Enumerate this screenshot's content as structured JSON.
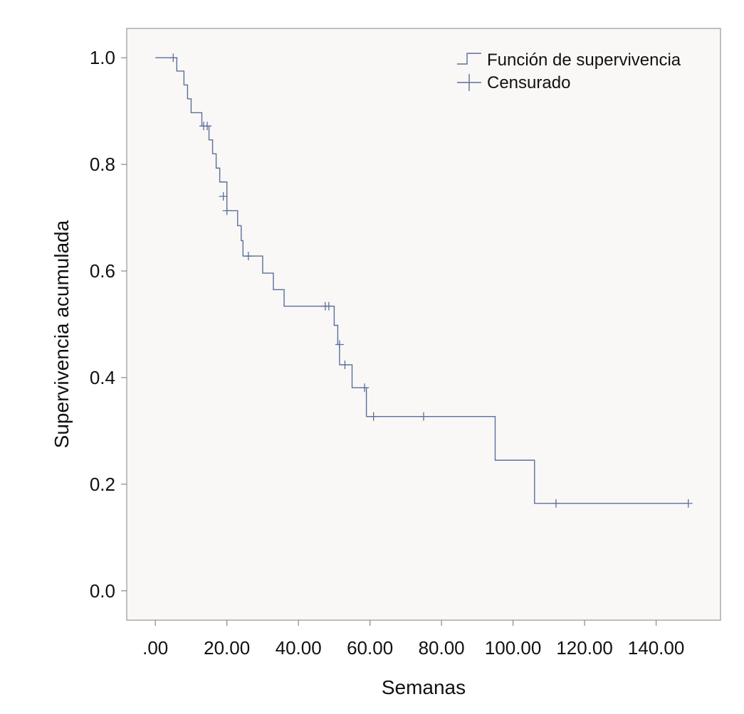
{
  "chart_data": {
    "type": "line",
    "title": "",
    "xlabel": "Semanas",
    "ylabel": "Supervivencia acumulada",
    "xlim": [
      -8,
      158
    ],
    "ylim": [
      -0.055,
      1.055
    ],
    "xticks": [
      0,
      20,
      40,
      60,
      80,
      100,
      120,
      140
    ],
    "xtick_labels": [
      ".00",
      "20.00",
      "40.00",
      "60.00",
      "80.00",
      "100.00",
      "120.00",
      "140.00"
    ],
    "yticks": [
      0.0,
      0.2,
      0.4,
      0.6,
      0.8,
      1.0
    ],
    "ytick_labels": [
      "0.0",
      "0.2",
      "0.4",
      "0.6",
      "0.8",
      "1.0"
    ],
    "grid": false,
    "legend_position": "top-right",
    "colors": {
      "line": "#5b6f9a",
      "plot_background": "#f9f8f7",
      "frame": "#aaaaaa",
      "axis": "#888888"
    },
    "series": [
      {
        "name": "Función de supervivencia",
        "step": "post",
        "x": [
          0,
          6,
          8,
          9,
          10,
          13,
          15,
          16,
          17,
          18,
          20,
          23,
          24,
          24.5,
          30,
          33,
          36,
          50,
          51,
          51.5,
          55,
          59,
          95,
          106,
          149
        ],
        "y": [
          1.0,
          0.975,
          0.949,
          0.923,
          0.897,
          0.872,
          0.846,
          0.82,
          0.793,
          0.767,
          0.713,
          0.685,
          0.657,
          0.628,
          0.596,
          0.565,
          0.534,
          0.498,
          0.462,
          0.424,
          0.381,
          0.327,
          0.245,
          0.164,
          0.164
        ]
      },
      {
        "name": "Censurado",
        "type": "scatter",
        "marker": "+",
        "x": [
          5,
          13.5,
          14.5,
          19,
          20,
          26,
          47.5,
          48.5,
          51.5,
          53,
          58.5,
          61,
          75,
          112,
          149
        ],
        "y": [
          1.0,
          0.872,
          0.872,
          0.74,
          0.713,
          0.628,
          0.534,
          0.534,
          0.462,
          0.424,
          0.381,
          0.327,
          0.327,
          0.164,
          0.164
        ]
      }
    ]
  }
}
